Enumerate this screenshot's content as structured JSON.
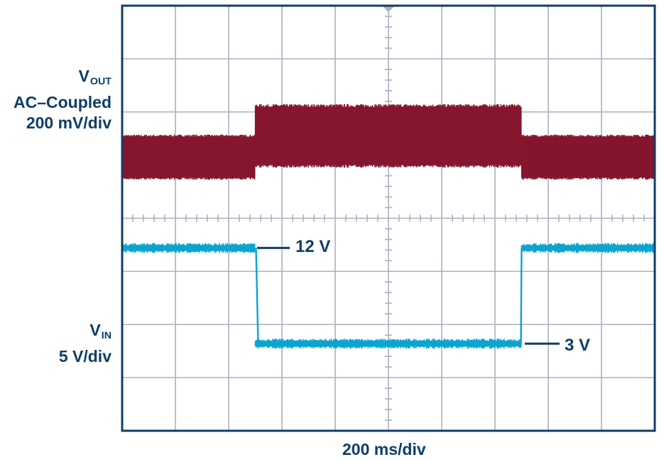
{
  "chart_data": {
    "type": "line",
    "xlabel": "200 ms/div",
    "series": [
      {
        "name": "VOUT",
        "label_main": "V",
        "label_sub": "OUT",
        "label_line2": "AC–Coupled",
        "label_line3": "200 mV/div",
        "color": "#85162e",
        "x_div": [
          0,
          2.5,
          2.5,
          7.5,
          7.5,
          10
        ],
        "center_div_from_top": [
          2.85,
          2.85,
          2.45,
          2.45,
          2.85,
          2.85
        ],
        "ripple_pp_div": [
          0.85,
          0.85,
          1.2,
          1.2,
          0.85,
          0.85
        ]
      },
      {
        "name": "VIN",
        "label_main": "V",
        "label_sub": "IN",
        "label_line2": "5 V/div",
        "color": "#0aa4d1",
        "x_div": [
          0,
          2.5,
          2.5,
          7.5,
          7.5,
          10
        ],
        "value_V": [
          12,
          12,
          3,
          3,
          12,
          12
        ]
      }
    ],
    "annotations": [
      {
        "text": "12 V",
        "series": "VIN",
        "value_V": 12
      },
      {
        "text": "3 V",
        "series": "VIN",
        "value_V": 3
      }
    ],
    "grid": true,
    "divisions_x": 10,
    "divisions_y": 8,
    "colors": {
      "frame": "#0e3e66",
      "grid": "#aab0c2",
      "text": "#0e3e66"
    }
  }
}
